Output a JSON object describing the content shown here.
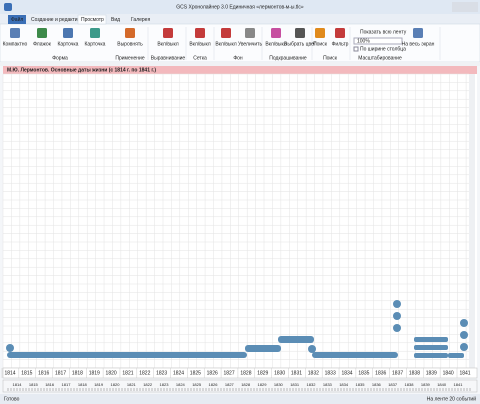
{
  "window": {
    "title": "GCS Хронолайнер 3.0 Единичная «лермонтов-м-ы.tlc»"
  },
  "tabs": [
    "Файл",
    "Создание и редактирование",
    "Просмотр",
    "Вид",
    "Галерея"
  ],
  "ribbon": {
    "groups": [
      {
        "label": "Форма",
        "buttons": [
          "Компактно",
          "Флажок",
          "Карточка",
          "Карточка"
        ]
      },
      {
        "label": "Применение",
        "buttons": [
          "Выровнять"
        ]
      },
      {
        "label": "Выравнивание",
        "buttons": [
          "Вкл/выкл"
        ]
      },
      {
        "label": "Сетка",
        "buttons": [
          "Вкл/выкл"
        ]
      },
      {
        "label": "Фон",
        "buttons": [
          "Вкл/выкл",
          "Увеличить"
        ]
      },
      {
        "label": "Подкрашивание",
        "buttons": [
          "Вкл/выкл",
          "Выбрать цвет"
        ]
      },
      {
        "label": "Поиск",
        "buttons": [
          "Поиск",
          "Фильтр"
        ]
      },
      {
        "label": "Масштабирование",
        "buttons": [
          "Показать всю ленту",
          "100%",
          "По ширине столбца",
          "На весь экран"
        ]
      }
    ]
  },
  "timeline": {
    "title": "М.Ю. Лермонтов. Основные даты жизни (с 1814 г. по 1841 г.)",
    "years": [
      "1814",
      "1815",
      "1816",
      "1817",
      "1818",
      "1819",
      "1820",
      "1821",
      "1822",
      "1823",
      "1824",
      "1825",
      "1826",
      "1827",
      "1828",
      "1829",
      "1830",
      "1831",
      "1832",
      "1833",
      "1834",
      "1835",
      "1836",
      "1837",
      "1838",
      "1839",
      "1840",
      "1841"
    ]
  },
  "status": {
    "left": "Готово",
    "right": "На ленте 20 событий"
  }
}
